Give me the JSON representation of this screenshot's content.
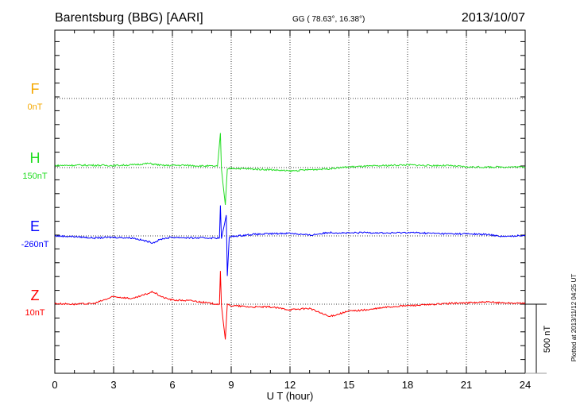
{
  "chart_data": {
    "type": "line",
    "title": "Barentsburg (BBG)  [AARI]",
    "coords": "GG ( 78.63°,  16.38°)",
    "date": "2013/10/07",
    "xlabel": "U T (hour)",
    "xlim": [
      0,
      24
    ],
    "xticks": [
      "0",
      "3",
      "6",
      "9",
      "12",
      "15",
      "18",
      "21",
      "24"
    ],
    "scale_label": "500 nT",
    "scale_nT": 500,
    "plotted_note": "Plotted at 2013/11/12 04:25 UT",
    "grid": true,
    "series": [
      {
        "name": "F",
        "baseline_label": "0nT",
        "color": "#f5a800",
        "x": [],
        "y": []
      },
      {
        "name": "H",
        "baseline_label": "150nT",
        "color": "#22dd22",
        "x": [
          0,
          1,
          2,
          3,
          4,
          4.8,
          5.5,
          6.5,
          7.5,
          8.3,
          8.45,
          8.5,
          8.7,
          8.8,
          9,
          10,
          11,
          12,
          13,
          14,
          15,
          16,
          17,
          18,
          19,
          20,
          21,
          22,
          23,
          24
        ],
        "y": [
          15,
          17,
          17,
          15,
          20,
          30,
          15,
          17,
          12,
          10,
          250,
          -10,
          -270,
          -15,
          -5,
          -10,
          -15,
          -25,
          -15,
          -8,
          5,
          10,
          15,
          20,
          15,
          15,
          5,
          3,
          5,
          5
        ]
      },
      {
        "name": "E",
        "baseline_label": "-260nT",
        "color": "#0000ff",
        "x": [
          0,
          1,
          2,
          3,
          4,
          5,
          5.5,
          6,
          7,
          8,
          8.4,
          8.45,
          8.5,
          8.75,
          8.8,
          8.9,
          9,
          10,
          11,
          12,
          13,
          14,
          15,
          16,
          17,
          18,
          19,
          20,
          21,
          22,
          23,
          24
        ],
        "y": [
          0,
          -5,
          -15,
          -10,
          -15,
          -50,
          -20,
          -10,
          -15,
          -15,
          -15,
          220,
          -20,
          150,
          -290,
          -15,
          -5,
          10,
          15,
          20,
          5,
          25,
          20,
          25,
          20,
          25,
          20,
          15,
          15,
          10,
          -5,
          5
        ]
      },
      {
        "name": "Z",
        "baseline_label": "10nT",
        "color": "#ff0000",
        "x": [
          0,
          1,
          2,
          3,
          4,
          5,
          5.5,
          6,
          7,
          8,
          8.4,
          8.45,
          8.5,
          8.7,
          8.8,
          9,
          10,
          11,
          12,
          13,
          14,
          15,
          16,
          17,
          18,
          19,
          20,
          21,
          22,
          23,
          24
        ],
        "y": [
          5,
          0,
          5,
          55,
          40,
          90,
          50,
          30,
          25,
          5,
          0,
          240,
          -10,
          -255,
          -5,
          -10,
          -20,
          -20,
          -40,
          -30,
          -90,
          -50,
          -40,
          -20,
          -10,
          -5,
          5,
          10,
          15,
          10,
          5
        ]
      }
    ]
  }
}
